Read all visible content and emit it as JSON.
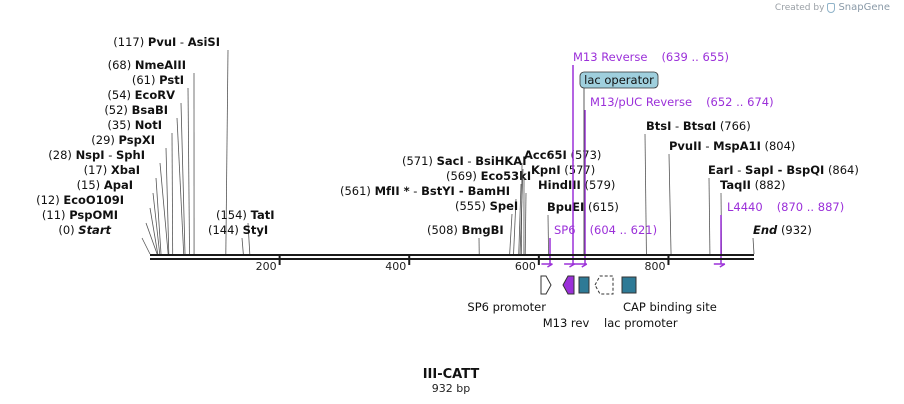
{
  "watermark": {
    "prefix": "Created by",
    "brand": "SnapGene"
  },
  "plasmid": {
    "name": "III-CATT",
    "length_label": "932 bp",
    "length": 932
  },
  "ruler": {
    "ticks": [
      200,
      400,
      600,
      800
    ]
  },
  "sites": [
    {
      "pos": 117,
      "pos_label": "(117)",
      "name": "PvuI",
      "alt": "AsiSI",
      "star": false
    },
    {
      "pos": 68,
      "pos_label": "(68)",
      "name": "NmeAIII",
      "alt": "",
      "star": false
    },
    {
      "pos": 61,
      "pos_label": "(61)",
      "name": "PstI",
      "alt": "",
      "star": false
    },
    {
      "pos": 54,
      "pos_label": "(54)",
      "name": "EcoRV",
      "alt": "",
      "star": false
    },
    {
      "pos": 52,
      "pos_label": "(52)",
      "name": "BsaBI",
      "alt": "",
      "star": false
    },
    {
      "pos": 35,
      "pos_label": "(35)",
      "name": "NotI",
      "alt": "",
      "star": false
    },
    {
      "pos": 29,
      "pos_label": "(29)",
      "name": "PspXI",
      "alt": "",
      "star": false
    },
    {
      "pos": 28,
      "pos_label": "(28)",
      "name": "NspI",
      "alt": "SphI",
      "star": false
    },
    {
      "pos": 17,
      "pos_label": "(17)",
      "name": "XbaI",
      "alt": "",
      "star": false
    },
    {
      "pos": 15,
      "pos_label": "(15)",
      "name": "ApaI",
      "alt": "",
      "star": false
    },
    {
      "pos": 12,
      "pos_label": "(12)",
      "name": "EcoO109I",
      "alt": "",
      "star": false
    },
    {
      "pos": 11,
      "pos_label": "(11)",
      "name": "PspOMI",
      "alt": "",
      "star": false
    },
    {
      "pos": 0,
      "pos_label": "(0)",
      "name": "Start",
      "alt": "",
      "star": false
    },
    {
      "pos": 154,
      "pos_label": "(154)",
      "name": "TatI",
      "alt": "",
      "star": false
    },
    {
      "pos": 144,
      "pos_label": "(144)",
      "name": "StyI",
      "alt": "",
      "star": false
    },
    {
      "pos": 571,
      "pos_label": "(571)",
      "name": "SacI",
      "alt": "BsiHKAI",
      "star": false
    },
    {
      "pos": 569,
      "pos_label": "(569)",
      "name": "Eco53kI",
      "alt": "",
      "star": false
    },
    {
      "pos": 561,
      "pos_label": "(561)",
      "name": "MfII",
      "alt": "BstYI - BamHI",
      "star": true
    },
    {
      "pos": 555,
      "pos_label": "(555)",
      "name": "SpeI",
      "alt": "",
      "star": false
    },
    {
      "pos": 508,
      "pos_label": "(508)",
      "name": "BmgBI",
      "alt": "",
      "star": false
    },
    {
      "pos": 573,
      "pos_label": "(573)",
      "name": "Acc65I",
      "alt": "",
      "star": false
    },
    {
      "pos": 577,
      "pos_label": "(577)",
      "name": "KpnI",
      "alt": "",
      "star": false
    },
    {
      "pos": 579,
      "pos_label": "(579)",
      "name": "HindIII",
      "alt": "",
      "star": false
    },
    {
      "pos": 615,
      "pos_label": "(615)",
      "name": "BpuEI",
      "alt": "",
      "star": false
    },
    {
      "pos": 766,
      "pos_label": "(766)",
      "name": "BtsI",
      "alt": "BtsαI",
      "star": false
    },
    {
      "pos": 804,
      "pos_label": "(804)",
      "name": "PvuII",
      "alt": "MspA1I",
      "star": false
    },
    {
      "pos": 864,
      "pos_label": "(864)",
      "name": "EarI",
      "alt": "SapI - BspQI",
      "star": false
    },
    {
      "pos": 882,
      "pos_label": "(882)",
      "name": "TaqII",
      "alt": "",
      "star": false
    },
    {
      "pos": 932,
      "pos_label": "(932)",
      "name": "End",
      "alt": "",
      "star": false
    }
  ],
  "primers": [
    {
      "name": "M13 Reverse",
      "range": "(639 .. 655)",
      "start": 639,
      "end": 655
    },
    {
      "name": "M13/pUC Reverse",
      "range": "(652 .. 674)",
      "start": 652,
      "end": 674
    },
    {
      "name": "SP6",
      "range": "(604 .. 621)",
      "start": 604,
      "end": 621
    },
    {
      "name": "L4440",
      "range": "(870 .. 887)",
      "start": 870,
      "end": 887
    }
  ],
  "features": [
    {
      "name": "lac operator",
      "kind": "protein-bind"
    },
    {
      "name": "SP6 promoter",
      "kind": "promoter"
    },
    {
      "name": "M13 rev",
      "kind": "primer-bind"
    },
    {
      "name": "lac promoter",
      "kind": "promoter"
    },
    {
      "name": "CAP binding site",
      "kind": "protein-bind"
    }
  ],
  "colors": {
    "primer": "#9b30d9",
    "feature": "#2e7a96",
    "operator_fill": "#9fcfdd",
    "line": "#1a1a1a"
  }
}
